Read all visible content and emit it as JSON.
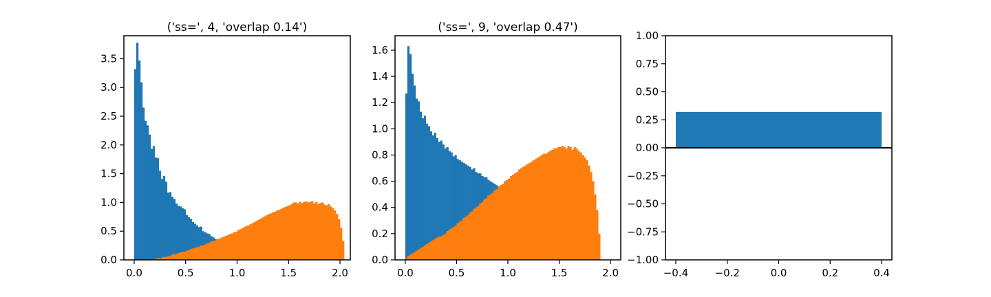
{
  "colors": {
    "blue": "#1f77b4",
    "orange": "#ff7f0e",
    "axis": "#000000"
  },
  "chart_data": [
    {
      "type": "histogram",
      "title": "('ss=', 4, 'overlap 0.14')",
      "xlim": [
        -0.1,
        2.1
      ],
      "ylim": [
        0,
        3.9
      ],
      "xticks": [
        0.0,
        0.5,
        1.0,
        1.5,
        2.0
      ],
      "xtick_labels": [
        "0.0",
        "0.5",
        "1.0",
        "1.5",
        "2.0"
      ],
      "yticks": [
        0.0,
        0.5,
        1.0,
        1.5,
        2.0,
        2.5,
        3.0,
        3.5
      ],
      "ytick_labels": [
        "0.0",
        "0.5",
        "1.0",
        "1.5",
        "2.0",
        "2.5",
        "3.0",
        "3.5"
      ],
      "bin_width": 0.02,
      "series": [
        {
          "color": "#1f77b4",
          "bin_start": 0.0,
          "values": [
            3.32,
            3.78,
            3.47,
            3.09,
            2.65,
            2.42,
            2.34,
            2.18,
            1.93,
            1.98,
            1.78,
            1.77,
            1.55,
            1.41,
            1.46,
            1.36,
            1.17,
            1.18,
            1.1,
            1.06,
            0.98,
            0.94,
            0.93,
            0.9,
            0.88,
            0.78,
            0.74,
            0.71,
            0.66,
            0.63,
            0.6,
            0.57,
            0.58,
            0.5,
            0.48,
            0.46,
            0.45,
            0.41,
            0.39,
            0.36,
            0.33,
            0.3,
            0.3,
            0.28,
            0.27,
            0.25,
            0.23,
            0.21,
            0.19,
            0.17,
            0.15
          ]
        },
        {
          "color": "#ff7f0e",
          "bin_start": 0.2,
          "values": [
            0.02,
            0.03,
            0.03,
            0.04,
            0.05,
            0.05,
            0.06,
            0.07,
            0.09,
            0.1,
            0.1,
            0.12,
            0.13,
            0.14,
            0.14,
            0.16,
            0.17,
            0.19,
            0.2,
            0.21,
            0.22,
            0.23,
            0.25,
            0.25,
            0.27,
            0.29,
            0.3,
            0.32,
            0.33,
            0.34,
            0.36,
            0.37,
            0.39,
            0.4,
            0.42,
            0.43,
            0.45,
            0.46,
            0.48,
            0.49,
            0.52,
            0.53,
            0.55,
            0.57,
            0.59,
            0.6,
            0.62,
            0.64,
            0.66,
            0.68,
            0.7,
            0.72,
            0.74,
            0.76,
            0.78,
            0.8,
            0.81,
            0.83,
            0.84,
            0.86,
            0.87,
            0.89,
            0.91,
            0.92,
            0.94,
            0.95,
            0.97,
            1.0,
            1.0,
            0.98,
            1.01,
            0.99,
            1.01,
            1.02,
            1.0,
            1.01,
            1.02,
            0.98,
            1.01,
            0.97,
            0.99,
            1.0,
            0.96,
            0.95,
            0.97,
            0.93,
            0.9,
            0.86,
            0.8,
            0.71,
            0.56,
            0.33
          ]
        }
      ]
    },
    {
      "type": "histogram",
      "title": "('ss=', 9, 'overlap 0.47')",
      "xlim": [
        -0.1,
        2.1
      ],
      "ylim": [
        0,
        1.71
      ],
      "xticks": [
        0.0,
        0.5,
        1.0,
        1.5,
        2.0
      ],
      "xtick_labels": [
        "0.0",
        "0.5",
        "1.0",
        "1.5",
        "2.0"
      ],
      "yticks": [
        0.0,
        0.2,
        0.4,
        0.6,
        0.8,
        1.0,
        1.2,
        1.4,
        1.6
      ],
      "ytick_labels": [
        "0.0",
        "0.2",
        "0.4",
        "0.6",
        "0.8",
        "1.0",
        "1.2",
        "1.4",
        "1.6"
      ],
      "bin_width": 0.02,
      "series": [
        {
          "color": "#1f77b4",
          "bin_start": 0.0,
          "values": [
            1.27,
            1.63,
            1.57,
            1.42,
            1.33,
            1.23,
            1.21,
            1.13,
            1.08,
            1.1,
            1.04,
            1.02,
            0.98,
            0.95,
            0.97,
            0.93,
            0.9,
            0.91,
            0.88,
            0.85,
            0.86,
            0.83,
            0.82,
            0.79,
            0.8,
            0.77,
            0.76,
            0.75,
            0.74,
            0.73,
            0.72,
            0.71,
            0.69,
            0.7,
            0.67,
            0.66,
            0.66,
            0.64,
            0.63,
            0.63,
            0.61,
            0.6,
            0.59,
            0.58,
            0.57,
            0.56,
            0.57,
            0.55,
            0.54
          ]
        },
        {
          "color": "#ff7f0e",
          "bin_start": 0.0,
          "values": [
            0.01,
            0.03,
            0.04,
            0.05,
            0.06,
            0.07,
            0.08,
            0.09,
            0.1,
            0.11,
            0.12,
            0.13,
            0.14,
            0.15,
            0.16,
            0.17,
            0.18,
            0.18,
            0.19,
            0.2,
            0.22,
            0.23,
            0.24,
            0.25,
            0.26,
            0.28,
            0.29,
            0.3,
            0.32,
            0.33,
            0.34,
            0.36,
            0.37,
            0.39,
            0.4,
            0.41,
            0.43,
            0.44,
            0.46,
            0.47,
            0.49,
            0.5,
            0.51,
            0.53,
            0.54,
            0.56,
            0.57,
            0.58,
            0.6,
            0.61,
            0.62,
            0.64,
            0.65,
            0.66,
            0.67,
            0.69,
            0.7,
            0.71,
            0.72,
            0.73,
            0.74,
            0.75,
            0.76,
            0.77,
            0.78,
            0.79,
            0.8,
            0.81,
            0.81,
            0.82,
            0.83,
            0.84,
            0.85,
            0.85,
            0.86,
            0.86,
            0.87,
            0.86,
            0.85,
            0.87,
            0.86,
            0.84,
            0.86,
            0.85,
            0.83,
            0.82,
            0.8,
            0.78,
            0.76,
            0.72,
            0.67,
            0.6,
            0.5,
            0.38,
            0.2
          ]
        }
      ]
    },
    {
      "type": "bar",
      "categories": [
        0
      ],
      "values": [
        0.32
      ],
      "bar_width": 0.8,
      "xlim": [
        -0.44,
        0.44
      ],
      "ylim": [
        -1.0,
        1.0
      ],
      "xticks": [
        -0.4,
        -0.2,
        0.0,
        0.2,
        0.4
      ],
      "xtick_labels": [
        "−0.4",
        "−0.2",
        "0.0",
        "0.2",
        "0.4"
      ],
      "yticks": [
        -1.0,
        -0.75,
        -0.5,
        -0.25,
        0.0,
        0.25,
        0.5,
        0.75,
        1.0
      ],
      "ytick_labels": [
        "−1.00",
        "−0.75",
        "−0.50",
        "−0.25",
        "0.00",
        "0.25",
        "0.50",
        "0.75",
        "1.00"
      ],
      "zero_line": true
    }
  ]
}
